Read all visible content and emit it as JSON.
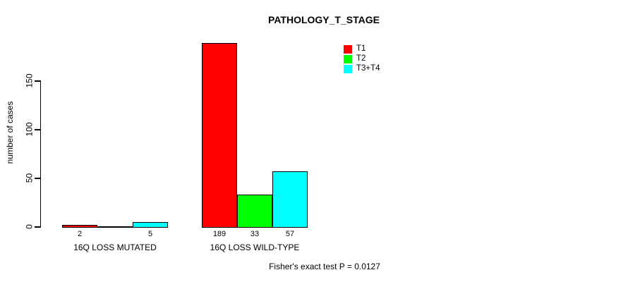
{
  "chart_data": {
    "type": "bar",
    "title": "PATHOLOGY_T_STAGE",
    "ylabel": "number of cases",
    "xlabel": "",
    "yticks": [
      0,
      50,
      100,
      150
    ],
    "ylim": [
      0,
      150
    ],
    "grid": false,
    "legend_position": "top-right-inside",
    "categories": [
      "16Q LOSS MUTATED",
      "16Q LOSS WILD-TYPE"
    ],
    "series": [
      {
        "name": "T1",
        "color": "#ff0000",
        "values": [
          2,
          189
        ]
      },
      {
        "name": "T2",
        "color": "#00ff00",
        "values": [
          0,
          33
        ]
      },
      {
        "name": "T3+T4",
        "color": "#00ffff",
        "values": [
          5,
          57
        ]
      }
    ],
    "bar_value_labels": [
      [
        "2",
        "",
        "5"
      ],
      [
        "189",
        "33",
        "57"
      ]
    ],
    "footer": "Fisher's exact test P = 0.0127",
    "colors": {
      "background": "#ffffff",
      "axis": "#000000",
      "text": "#000000"
    }
  }
}
